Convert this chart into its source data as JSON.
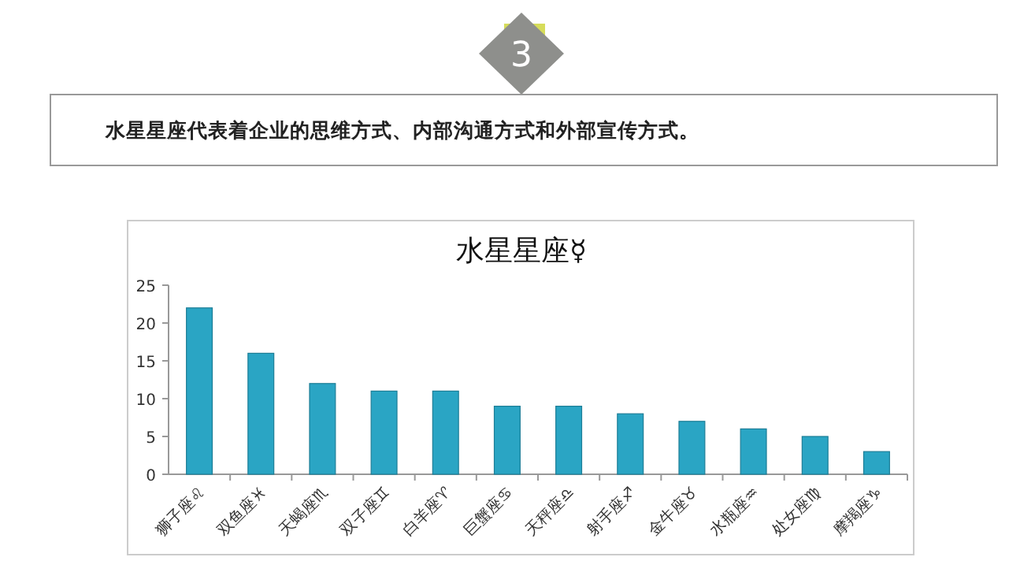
{
  "chart_data": {
    "type": "bar",
    "title": "水星星座☿",
    "categories": [
      "狮子座♌",
      "双鱼座♓",
      "天蝎座♏",
      "双子座♊",
      "白羊座♈",
      "巨蟹座♋",
      "天秤座♎",
      "射手座♐",
      "金牛座♉",
      "水瓶座♒",
      "处女座♍",
      "摩羯座♑"
    ],
    "values": [
      22,
      16,
      12,
      11,
      11,
      9,
      9,
      8,
      7,
      6,
      5,
      3
    ],
    "color": "#2aa5c4",
    "ylim": [
      0,
      25
    ],
    "yticks": [
      0,
      5,
      10,
      15,
      20,
      25
    ],
    "annotations": [
      "3",
      "水星星座代表着企业的思维方式、内部沟通方式和外部宣传方式。"
    ]
  }
}
